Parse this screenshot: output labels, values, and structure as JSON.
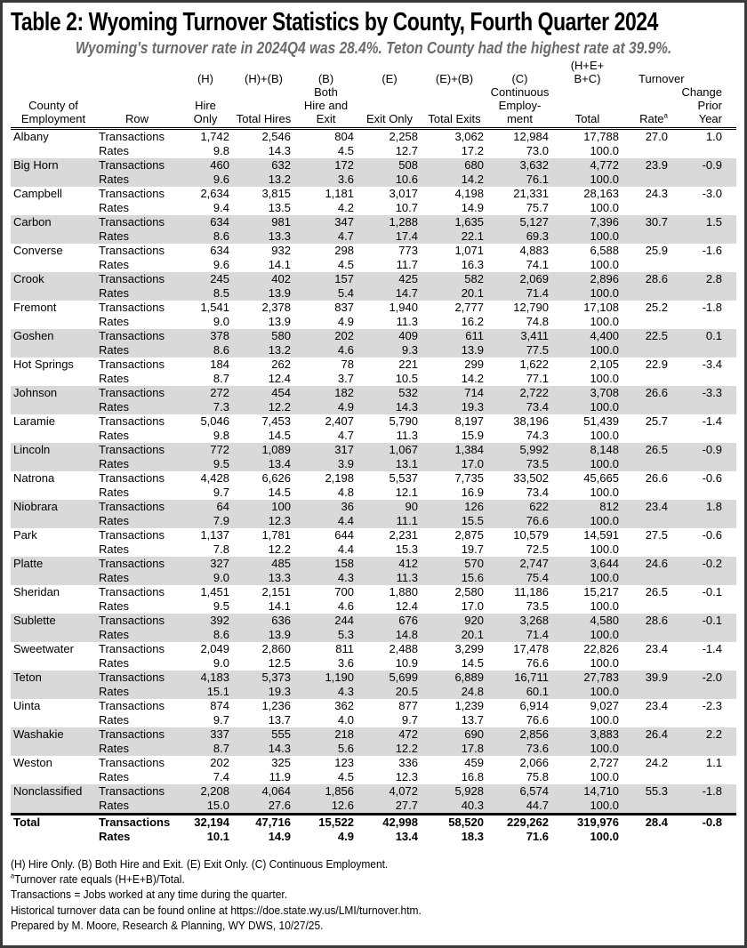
{
  "title": "Table 2: Wyoming Turnover Statistics by County, Fourth Quarter 2024",
  "subtitle": "Wyoming's turnover rate in 2024Q4 was 28.4%. Teton County had the highest rate at 39.9%.",
  "colors": {
    "shade": "#d9d9d9",
    "subtitle": "#6b6b6b"
  },
  "header": {
    "columns": [
      {
        "lines": [
          "",
          "",
          "",
          "County of",
          "Employment"
        ],
        "align": "ctr"
      },
      {
        "lines": [
          "",
          "",
          "",
          "",
          "Row"
        ],
        "align": "ctr"
      },
      {
        "lines": [
          "",
          "(H)",
          "",
          "Hire",
          "Only"
        ],
        "align": "ctr"
      },
      {
        "lines": [
          "",
          "(H)+(B)",
          "",
          "",
          "Total Hires"
        ],
        "align": "ctr"
      },
      {
        "lines": [
          "",
          "(B)",
          "Both",
          "Hire and",
          "Exit"
        ],
        "align": "ctr"
      },
      {
        "lines": [
          "",
          "(E)",
          "",
          "",
          "Exit Only"
        ],
        "align": "ctr"
      },
      {
        "lines": [
          "",
          "(E)+(B)",
          "",
          "",
          "Total Exits"
        ],
        "align": "ctr"
      },
      {
        "lines": [
          "",
          "(C)",
          "Continuous",
          "Employ-",
          "ment"
        ],
        "align": "ctr"
      },
      {
        "lines": [
          "(H+E+",
          "B+C)",
          "",
          "",
          "Total"
        ],
        "align": "ctr"
      },
      {
        "lines": [
          "",
          "",
          "",
          "",
          "Rate"
        ],
        "align": "num",
        "sup": "a"
      },
      {
        "lines": [
          "",
          "",
          "Change",
          "Prior",
          "Year"
        ],
        "align": "num"
      }
    ],
    "turnover_group": "Turnover"
  },
  "rows": [
    {
      "county": "Albany",
      "transactions": [
        "1,742",
        "2,546",
        "804",
        "2,258",
        "3,062",
        "12,984",
        "17,788"
      ],
      "rates": [
        "9.8",
        "14.3",
        "4.5",
        "12.7",
        "17.2",
        "73.0",
        "100.0"
      ],
      "turnover_rate": "27.0",
      "change": "1.0"
    },
    {
      "county": "Big Horn",
      "transactions": [
        "460",
        "632",
        "172",
        "508",
        "680",
        "3,632",
        "4,772"
      ],
      "rates": [
        "9.6",
        "13.2",
        "3.6",
        "10.6",
        "14.2",
        "76.1",
        "100.0"
      ],
      "turnover_rate": "23.9",
      "change": "-0.9"
    },
    {
      "county": "Campbell",
      "transactions": [
        "2,634",
        "3,815",
        "1,181",
        "3,017",
        "4,198",
        "21,331",
        "28,163"
      ],
      "rates": [
        "9.4",
        "13.5",
        "4.2",
        "10.7",
        "14.9",
        "75.7",
        "100.0"
      ],
      "turnover_rate": "24.3",
      "change": "-3.0"
    },
    {
      "county": "Carbon",
      "transactions": [
        "634",
        "981",
        "347",
        "1,288",
        "1,635",
        "5,127",
        "7,396"
      ],
      "rates": [
        "8.6",
        "13.3",
        "4.7",
        "17.4",
        "22.1",
        "69.3",
        "100.0"
      ],
      "turnover_rate": "30.7",
      "change": "1.5"
    },
    {
      "county": "Converse",
      "transactions": [
        "634",
        "932",
        "298",
        "773",
        "1,071",
        "4,883",
        "6,588"
      ],
      "rates": [
        "9.6",
        "14.1",
        "4.5",
        "11.7",
        "16.3",
        "74.1",
        "100.0"
      ],
      "turnover_rate": "25.9",
      "change": "-1.6"
    },
    {
      "county": "Crook",
      "transactions": [
        "245",
        "402",
        "157",
        "425",
        "582",
        "2,069",
        "2,896"
      ],
      "rates": [
        "8.5",
        "13.9",
        "5.4",
        "14.7",
        "20.1",
        "71.4",
        "100.0"
      ],
      "turnover_rate": "28.6",
      "change": "2.8"
    },
    {
      "county": "Fremont",
      "transactions": [
        "1,541",
        "2,378",
        "837",
        "1,940",
        "2,777",
        "12,790",
        "17,108"
      ],
      "rates": [
        "9.0",
        "13.9",
        "4.9",
        "11.3",
        "16.2",
        "74.8",
        "100.0"
      ],
      "turnover_rate": "25.2",
      "change": "-1.8"
    },
    {
      "county": "Goshen",
      "transactions": [
        "378",
        "580",
        "202",
        "409",
        "611",
        "3,411",
        "4,400"
      ],
      "rates": [
        "8.6",
        "13.2",
        "4.6",
        "9.3",
        "13.9",
        "77.5",
        "100.0"
      ],
      "turnover_rate": "22.5",
      "change": "0.1"
    },
    {
      "county": "Hot Springs",
      "transactions": [
        "184",
        "262",
        "78",
        "221",
        "299",
        "1,622",
        "2,105"
      ],
      "rates": [
        "8.7",
        "12.4",
        "3.7",
        "10.5",
        "14.2",
        "77.1",
        "100.0"
      ],
      "turnover_rate": "22.9",
      "change": "-3.4"
    },
    {
      "county": "Johnson",
      "transactions": [
        "272",
        "454",
        "182",
        "532",
        "714",
        "2,722",
        "3,708"
      ],
      "rates": [
        "7.3",
        "12.2",
        "4.9",
        "14.3",
        "19.3",
        "73.4",
        "100.0"
      ],
      "turnover_rate": "26.6",
      "change": "-3.3"
    },
    {
      "county": "Laramie",
      "transactions": [
        "5,046",
        "7,453",
        "2,407",
        "5,790",
        "8,197",
        "38,196",
        "51,439"
      ],
      "rates": [
        "9.8",
        "14.5",
        "4.7",
        "11.3",
        "15.9",
        "74.3",
        "100.0"
      ],
      "turnover_rate": "25.7",
      "change": "-1.4"
    },
    {
      "county": "Lincoln",
      "transactions": [
        "772",
        "1,089",
        "317",
        "1,067",
        "1,384",
        "5,992",
        "8,148"
      ],
      "rates": [
        "9.5",
        "13.4",
        "3.9",
        "13.1",
        "17.0",
        "73.5",
        "100.0"
      ],
      "turnover_rate": "26.5",
      "change": "-0.9"
    },
    {
      "county": "Natrona",
      "transactions": [
        "4,428",
        "6,626",
        "2,198",
        "5,537",
        "7,735",
        "33,502",
        "45,665"
      ],
      "rates": [
        "9.7",
        "14.5",
        "4.8",
        "12.1",
        "16.9",
        "73.4",
        "100.0"
      ],
      "turnover_rate": "26.6",
      "change": "-0.6"
    },
    {
      "county": "Niobrara",
      "transactions": [
        "64",
        "100",
        "36",
        "90",
        "126",
        "622",
        "812"
      ],
      "rates": [
        "7.9",
        "12.3",
        "4.4",
        "11.1",
        "15.5",
        "76.6",
        "100.0"
      ],
      "turnover_rate": "23.4",
      "change": "1.8"
    },
    {
      "county": "Park",
      "transactions": [
        "1,137",
        "1,781",
        "644",
        "2,231",
        "2,875",
        "10,579",
        "14,591"
      ],
      "rates": [
        "7.8",
        "12.2",
        "4.4",
        "15.3",
        "19.7",
        "72.5",
        "100.0"
      ],
      "turnover_rate": "27.5",
      "change": "-0.6"
    },
    {
      "county": "Platte",
      "transactions": [
        "327",
        "485",
        "158",
        "412",
        "570",
        "2,747",
        "3,644"
      ],
      "rates": [
        "9.0",
        "13.3",
        "4.3",
        "11.3",
        "15.6",
        "75.4",
        "100.0"
      ],
      "turnover_rate": "24.6",
      "change": "-0.2"
    },
    {
      "county": "Sheridan",
      "transactions": [
        "1,451",
        "2,151",
        "700",
        "1,880",
        "2,580",
        "11,186",
        "15,217"
      ],
      "rates": [
        "9.5",
        "14.1",
        "4.6",
        "12.4",
        "17.0",
        "73.5",
        "100.0"
      ],
      "turnover_rate": "26.5",
      "change": "-0.1"
    },
    {
      "county": "Sublette",
      "transactions": [
        "392",
        "636",
        "244",
        "676",
        "920",
        "3,268",
        "4,580"
      ],
      "rates": [
        "8.6",
        "13.9",
        "5.3",
        "14.8",
        "20.1",
        "71.4",
        "100.0"
      ],
      "turnover_rate": "28.6",
      "change": "-0.1"
    },
    {
      "county": "Sweetwater",
      "transactions": [
        "2,049",
        "2,860",
        "811",
        "2,488",
        "3,299",
        "17,478",
        "22,826"
      ],
      "rates": [
        "9.0",
        "12.5",
        "3.6",
        "10.9",
        "14.5",
        "76.6",
        "100.0"
      ],
      "turnover_rate": "23.4",
      "change": "-1.4"
    },
    {
      "county": "Teton",
      "transactions": [
        "4,183",
        "5,373",
        "1,190",
        "5,699",
        "6,889",
        "16,711",
        "27,783"
      ],
      "rates": [
        "15.1",
        "19.3",
        "4.3",
        "20.5",
        "24.8",
        "60.1",
        "100.0"
      ],
      "turnover_rate": "39.9",
      "change": "-2.0"
    },
    {
      "county": "Uinta",
      "transactions": [
        "874",
        "1,236",
        "362",
        "877",
        "1,239",
        "6,914",
        "9,027"
      ],
      "rates": [
        "9.7",
        "13.7",
        "4.0",
        "9.7",
        "13.7",
        "76.6",
        "100.0"
      ],
      "turnover_rate": "23.4",
      "change": "-2.3"
    },
    {
      "county": "Washakie",
      "transactions": [
        "337",
        "555",
        "218",
        "472",
        "690",
        "2,856",
        "3,883"
      ],
      "rates": [
        "8.7",
        "14.3",
        "5.6",
        "12.2",
        "17.8",
        "73.6",
        "100.0"
      ],
      "turnover_rate": "26.4",
      "change": "2.2"
    },
    {
      "county": "Weston",
      "transactions": [
        "202",
        "325",
        "123",
        "336",
        "459",
        "2,066",
        "2,727"
      ],
      "rates": [
        "7.4",
        "11.9",
        "4.5",
        "12.3",
        "16.8",
        "75.8",
        "100.0"
      ],
      "turnover_rate": "24.2",
      "change": "1.1"
    },
    {
      "county": "Nonclassified",
      "transactions": [
        "2,208",
        "4,064",
        "1,856",
        "4,072",
        "5,928",
        "6,574",
        "14,710"
      ],
      "rates": [
        "15.0",
        "27.6",
        "12.6",
        "27.7",
        "40.3",
        "44.7",
        "100.0"
      ],
      "turnover_rate": "55.3",
      "change": "-1.8"
    }
  ],
  "total": {
    "county": "Total",
    "transactions": [
      "32,194",
      "47,716",
      "15,522",
      "42,998",
      "58,520",
      "229,262",
      "319,976"
    ],
    "rates": [
      "10.1",
      "14.9",
      "4.9",
      "13.4",
      "18.3",
      "71.6",
      "100.0"
    ],
    "turnover_rate": "28.4",
    "change": "-0.8"
  },
  "row_labels": {
    "transactions": "Transactions",
    "rates": "Rates"
  },
  "notes": {
    "legend": "(H) Hire Only. (B) Both Hire and Exit. (E) Exit Only. (C) Continuous Employment.",
    "footnote_mark": "a",
    "footnote": "Turnover rate equals (H+E+B)/Total.",
    "transactions_def": "Transactions = Jobs worked at any time during the quarter.",
    "historical": "Historical turnover data can be found online at https://doe.state.wy.us/LMI/turnover.htm.",
    "prepared": "Prepared by M. Moore, Research & Planning, WY DWS, 10/27/25."
  }
}
